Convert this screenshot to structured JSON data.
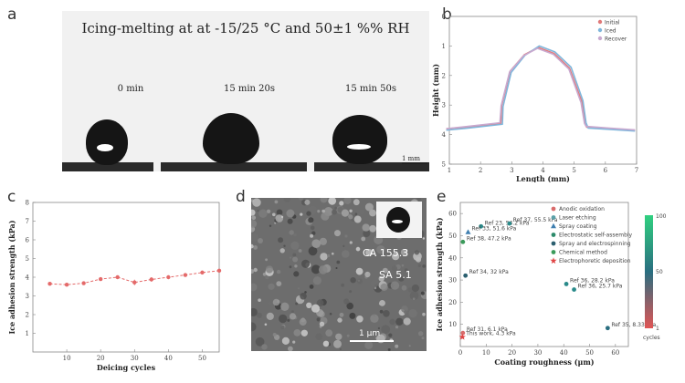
{
  "labels": {
    "a": "a",
    "b": "b",
    "c": "c",
    "d": "d",
    "e": "e"
  },
  "panel_a": {
    "title": "Icing-melting at at -15/25 °C and 50±1 %% RH",
    "times": [
      "0 min",
      "15 min 20s",
      "15 min 50s"
    ],
    "scalebar": "1 mm"
  },
  "panel_d": {
    "ca": "CA 155.3",
    "sa": "SA 5.1",
    "scalebar": "1 μm"
  },
  "colors": {
    "initial": "#e07a7a",
    "iced": "#7fb6dc",
    "recover": "#c9a9cf",
    "c_line": "#e46a6a"
  },
  "chart_data": [
    {
      "type": "line",
      "xlabel": "Length (mm)",
      "ylabel": "Height (mm)",
      "xlim": [
        1,
        7
      ],
      "ylim": [
        0,
        5
      ],
      "y_inverted": true,
      "xticks": [
        "1",
        "2",
        "3",
        "4",
        "5",
        "6",
        "7"
      ],
      "yticks": [
        "0",
        "1",
        "2",
        "3",
        "4",
        "5"
      ],
      "legend_position": "top-right",
      "series": [
        {
          "name": "Initial",
          "color": "#e07a7a",
          "x": [
            0.9,
            1.6,
            2.65,
            2.68,
            2.95,
            3.4,
            3.85,
            4.35,
            4.85,
            5.25,
            5.35,
            5.4,
            6.1,
            6.95
          ],
          "y": [
            3.8,
            3.75,
            3.62,
            3.0,
            1.85,
            1.3,
            1.05,
            1.25,
            1.75,
            2.9,
            3.62,
            3.75,
            3.8,
            3.85
          ]
        },
        {
          "name": "Iced",
          "color": "#7fb6dc",
          "x": [
            0.9,
            1.6,
            2.7,
            2.72,
            2.98,
            3.42,
            3.88,
            4.38,
            4.9,
            5.28,
            5.38,
            5.45,
            6.1,
            6.95
          ],
          "y": [
            3.85,
            3.78,
            3.65,
            3.05,
            1.9,
            1.32,
            1.0,
            1.2,
            1.72,
            2.85,
            3.6,
            3.78,
            3.82,
            3.88
          ]
        },
        {
          "name": "Recover",
          "color": "#c9a9cf",
          "x": [
            0.9,
            1.6,
            2.62,
            2.66,
            2.93,
            3.38,
            3.82,
            4.33,
            4.83,
            5.22,
            5.33,
            5.38,
            6.1,
            6.95
          ],
          "y": [
            3.8,
            3.72,
            3.6,
            3.02,
            1.88,
            1.33,
            1.08,
            1.28,
            1.78,
            2.92,
            3.62,
            3.72,
            3.78,
            3.84
          ]
        }
      ]
    },
    {
      "type": "line",
      "xlabel": "Deicing cycles",
      "ylabel": "Ice adhesion strength (kPa)",
      "xlim": [
        0,
        55
      ],
      "ylim": [
        0,
        8
      ],
      "xticks": [
        "10",
        "20",
        "30",
        "40",
        "50"
      ],
      "yticks": [
        "1",
        "2",
        "3",
        "4",
        "5",
        "6",
        "7",
        "8"
      ],
      "x": [
        5,
        10,
        15,
        20,
        25,
        30,
        35,
        40,
        45,
        50,
        55
      ],
      "values": [
        3.65,
        3.6,
        3.68,
        3.9,
        4.0,
        3.72,
        3.88,
        4.0,
        4.12,
        4.25,
        4.35
      ],
      "errors": [
        0.08,
        0.07,
        0.08,
        0.06,
        0.07,
        0.15,
        0.12,
        0.1,
        0.1,
        0.1,
        0.1
      ]
    },
    {
      "type": "scatter",
      "xlabel": "Coating roughness (μm)",
      "ylabel": "Ice adhesion strength (kPa)",
      "xlim": [
        0,
        65
      ],
      "ylim": [
        0,
        65
      ],
      "xticks": [
        "0",
        "10",
        "20",
        "30",
        "40",
        "50",
        "60"
      ],
      "yticks": [
        "10",
        "20",
        "30",
        "40",
        "50",
        "60"
      ],
      "legend_position": "top-right",
      "legend": [
        {
          "name": "Anodic oxidation",
          "color": "#d96b6b",
          "marker": "circle"
        },
        {
          "name": "Laser etching",
          "color": "#5aa0a8",
          "marker": "circle"
        },
        {
          "name": "Spray coating",
          "color": "#3f7fb0",
          "marker": "triangle"
        },
        {
          "name": "Electrostatic self-assembly",
          "color": "#2c8a6a",
          "marker": "circle"
        },
        {
          "name": "Spray and electrospinning",
          "color": "#2b5f6f",
          "marker": "circle"
        },
        {
          "name": "Chemical method",
          "color": "#3a9a5a",
          "marker": "circle"
        },
        {
          "name": "Electrophoretic deposition",
          "color": "#e04444",
          "marker": "star"
        }
      ],
      "colorbar": {
        "label": "cycles",
        "min": "1",
        "mid": "50",
        "max": "100",
        "colors": [
          "#e05555",
          "#2a6e80",
          "#30d080"
        ]
      },
      "points": [
        {
          "x": 8,
          "y": 54.2,
          "label": "Ref 23, 54.2 kPa",
          "color": "#2a8a8a",
          "marker": "circle"
        },
        {
          "x": 19,
          "y": 55.5,
          "label": "Ref 37, 55.5 kPa",
          "color": "#2a8a8a",
          "marker": "circle"
        },
        {
          "x": 3,
          "y": 51.6,
          "label": "Ref 33, 51.6 kPa",
          "color": "#3f7fb0",
          "marker": "triangle"
        },
        {
          "x": 1,
          "y": 47.2,
          "label": "Ref 38, 47.2 kPa",
          "color": "#3a9a5a",
          "marker": "circle"
        },
        {
          "x": 2,
          "y": 32,
          "label": "Ref 34, 32 kPa",
          "color": "#2b5f6f",
          "marker": "circle"
        },
        {
          "x": 41,
          "y": 28.2,
          "label": "Ref 36, 28.2 kPa",
          "color": "#2a8a8a",
          "marker": "circle"
        },
        {
          "x": 44,
          "y": 25.7,
          "label": "Ref 36, 25.7 kPa",
          "color": "#2a8a8a",
          "marker": "circle"
        },
        {
          "x": 57,
          "y": 8.33,
          "label": "Ref 35, 8.33 kPa",
          "color": "#2a6e80",
          "marker": "circle"
        },
        {
          "x": 1,
          "y": 6.1,
          "label": "Ref 31, 6.1 kPa",
          "color": "#d96b6b",
          "marker": "circle"
        },
        {
          "x": 0.8,
          "y": 4.3,
          "label": "This work, 4.3 kPa",
          "color": "#e04444",
          "marker": "star"
        }
      ]
    }
  ]
}
